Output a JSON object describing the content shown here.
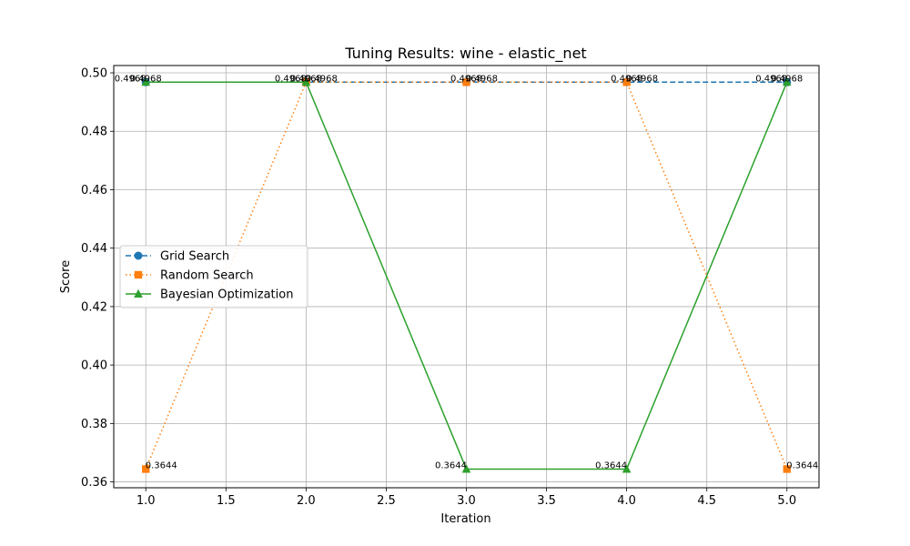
{
  "chart_data": {
    "type": "line",
    "title": "Tuning Results: wine - elastic_net",
    "xlabel": "Iteration",
    "ylabel": "Score",
    "x": [
      1,
      2,
      3,
      4,
      5
    ],
    "xlim": [
      0.8,
      5.2
    ],
    "ylim": [
      0.358,
      0.5025
    ],
    "xticks": [
      1.0,
      1.5,
      2.0,
      2.5,
      3.0,
      3.5,
      4.0,
      4.5,
      5.0
    ],
    "xtick_labels": [
      "1.0",
      "1.5",
      "2.0",
      "2.5",
      "3.0",
      "3.5",
      "4.0",
      "4.5",
      "5.0"
    ],
    "yticks": [
      0.36,
      0.38,
      0.4,
      0.42,
      0.44,
      0.46,
      0.48,
      0.5
    ],
    "ytick_labels": [
      "0.36",
      "0.38",
      "0.40",
      "0.42",
      "0.44",
      "0.46",
      "0.48",
      "0.50"
    ],
    "grid": true,
    "legend_position": "center-left",
    "series": [
      {
        "name": "Grid Search",
        "values": [
          0.4968,
          0.4968,
          0.4968,
          0.4968,
          0.4968
        ],
        "labels": [
          "0.4968",
          "0.4968",
          "0.4968",
          "0.4968",
          "0.4968"
        ],
        "color": "#1f77b4",
        "line_style": "dashed",
        "marker": "circle"
      },
      {
        "name": "Random Search",
        "values": [
          0.3644,
          0.4968,
          0.4968,
          0.4968,
          0.3644
        ],
        "labels": [
          "0.3644",
          "0.4968",
          "0.4968",
          "0.4968",
          "0.3644"
        ],
        "color": "#ff7f0e",
        "line_style": "dotted",
        "marker": "square"
      },
      {
        "name": "Bayesian Optimization",
        "values": [
          0.4968,
          0.4968,
          0.3644,
          0.3644,
          0.4968
        ],
        "labels": [
          "0.4968",
          "0.4968",
          "0.3644",
          "0.3644",
          "0.4968"
        ],
        "color": "#2ca02c",
        "line_style": "solid",
        "marker": "triangle"
      }
    ]
  }
}
